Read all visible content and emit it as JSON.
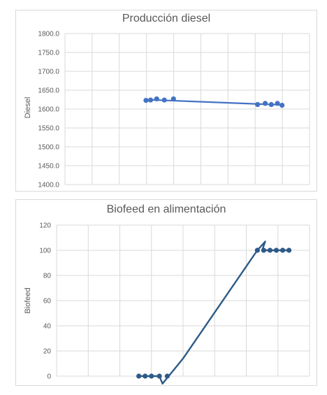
{
  "chart_data": [
    {
      "type": "line",
      "title": "Producción diesel",
      "xlabel": "",
      "ylabel": "Diesel",
      "ylim": [
        1400,
        1800
      ],
      "y_ticks": [
        "1800.0",
        "1750.0",
        "1700.0",
        "1650.0",
        "1600.0",
        "1550.0",
        "1500.0",
        "1450.0",
        "1400.0"
      ],
      "x_grid_columns": 9,
      "color": "#4472c4",
      "series": [
        {
          "x": [
            2.65,
            2.8,
            3.0,
            3.25,
            3.55,
            6.3,
            6.55,
            6.75,
            6.95,
            7.1
          ],
          "values": [
            1623,
            1624,
            1627,
            1624,
            1627,
            1612,
            1615,
            1612,
            1615,
            1610
          ]
        }
      ],
      "trend_line": [
        [
          2.65,
          1625
        ],
        [
          7.1,
          1611
        ]
      ]
    },
    {
      "type": "line",
      "title": "Biofeed en alimentación",
      "xlabel": "",
      "ylabel": "Biofeed",
      "ylim": [
        0,
        120
      ],
      "y_ticks": [
        "120",
        "100",
        "80",
        "60",
        "40",
        "20",
        "0"
      ],
      "x_grid_columns": 8,
      "color": "#2e5a87",
      "series": [
        {
          "x": [
            2.6,
            2.8,
            3.0,
            3.25,
            3.5,
            6.35,
            6.55,
            6.75,
            6.95,
            7.15,
            7.35
          ],
          "values": [
            0,
            0,
            0,
            0,
            0,
            100,
            100,
            100,
            100,
            100,
            100
          ]
        }
      ],
      "smooth_path": [
        [
          2.6,
          0
        ],
        [
          3.25,
          0
        ],
        [
          3.35,
          -6
        ],
        [
          4.0,
          14
        ],
        [
          6.35,
          100
        ],
        [
          6.6,
          107
        ],
        [
          6.5,
          100
        ],
        [
          7.35,
          100
        ]
      ]
    }
  ]
}
